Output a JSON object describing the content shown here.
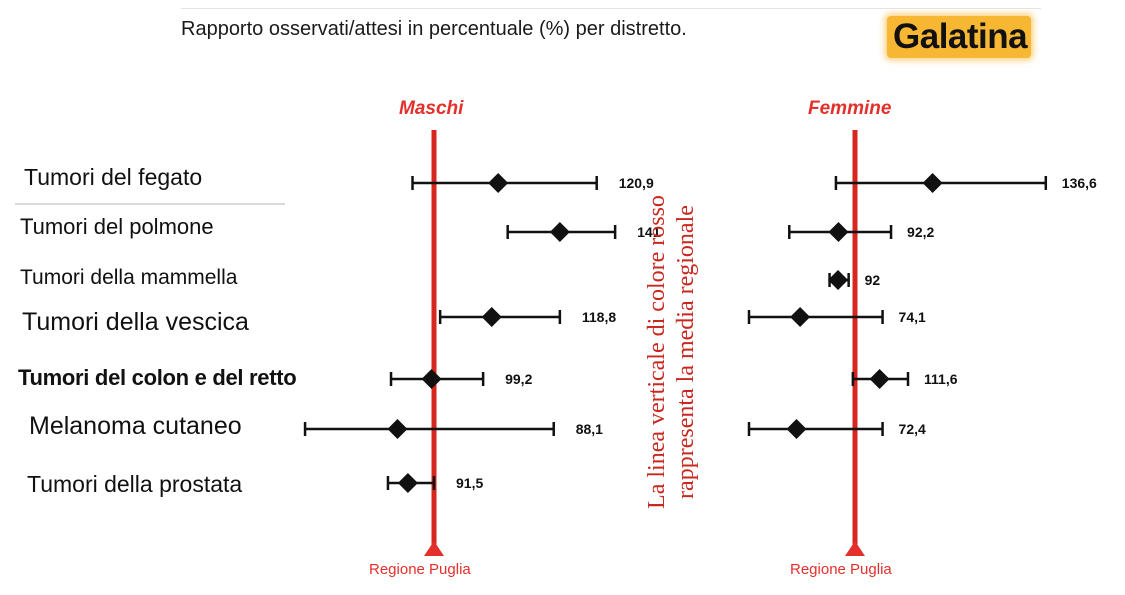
{
  "header": {
    "title": "Rapporto osservati/attesi in percentuale (%) per distretto.",
    "city": "Galatina"
  },
  "note": {
    "line1": "La linea verticale di colore rosso",
    "line2": "rappresenta la media regionale"
  },
  "colors": {
    "reference_line": "#d7261e",
    "reference_label": "#e4302b",
    "markers": "#111111",
    "city_highlight": "#f7b733"
  },
  "chart_data": [
    {
      "type": "scatter",
      "subtype": "forest-plot",
      "title": "Maschi",
      "reference_value": 100,
      "reference_label": "Regione Puglia",
      "categories": [
        "Tumori del fegato",
        "Tumori del polmone",
        "Tumori della mammella",
        "Tumori della vescica",
        "Tumori del colon e del retto",
        "Melanoma cutaneo",
        "Tumori della prostata"
      ],
      "points": [
        {
          "category": "Tumori del fegato",
          "value": 120.9,
          "label": "120,9",
          "ci_low": 93,
          "ci_high": 153
        },
        {
          "category": "Tumori del polmone",
          "value": 141,
          "label": "141",
          "ci_low": 124,
          "ci_high": 159
        },
        {
          "category": "Tumori della mammella",
          "value": null,
          "label": "",
          "ci_low": null,
          "ci_high": null
        },
        {
          "category": "Tumori della vescica",
          "value": 118.8,
          "label": "118,8",
          "ci_low": 102,
          "ci_high": 141
        },
        {
          "category": "Tumori del colon e del retto",
          "value": 99.2,
          "label": "99,2",
          "ci_low": 86,
          "ci_high": 116
        },
        {
          "category": "Melanoma cutaneo",
          "value": 88.1,
          "label": "88,1",
          "ci_low": 58,
          "ci_high": 139
        },
        {
          "category": "Tumori della prostata",
          "value": 91.5,
          "label": "91,5",
          "ci_low": 85,
          "ci_high": 100
        }
      ]
    },
    {
      "type": "scatter",
      "subtype": "forest-plot",
      "title": "Femmine",
      "reference_value": 100,
      "reference_label": "Regione Puglia",
      "categories": [
        "Tumori del fegato",
        "Tumori del polmone",
        "Tumori della mammella",
        "Tumori della vescica",
        "Tumori del colon e del retto",
        "Melanoma cutaneo",
        "Tumori della prostata"
      ],
      "points": [
        {
          "category": "Tumori del fegato",
          "value": 136.6,
          "label": "136,6",
          "ci_low": 91,
          "ci_high": 190
        },
        {
          "category": "Tumori del polmone",
          "value": 92.2,
          "label": "92,2",
          "ci_low": 69,
          "ci_high": 117
        },
        {
          "category": "Tumori della mammella",
          "value": 92,
          "label": "92",
          "ci_low": 88,
          "ci_high": 97
        },
        {
          "category": "Tumori della vescica",
          "value": 74.1,
          "label": "74,1",
          "ci_low": 50,
          "ci_high": 113
        },
        {
          "category": "Tumori del colon e del retto",
          "value": 111.6,
          "label": "111,6",
          "ci_low": 99,
          "ci_high": 125
        },
        {
          "category": "Melanoma cutaneo",
          "value": 72.4,
          "label": "72,4",
          "ci_low": 50,
          "ci_high": 113
        },
        {
          "category": "Tumori della prostata",
          "value": null,
          "label": "",
          "ci_low": null,
          "ci_high": null
        }
      ]
    }
  ]
}
